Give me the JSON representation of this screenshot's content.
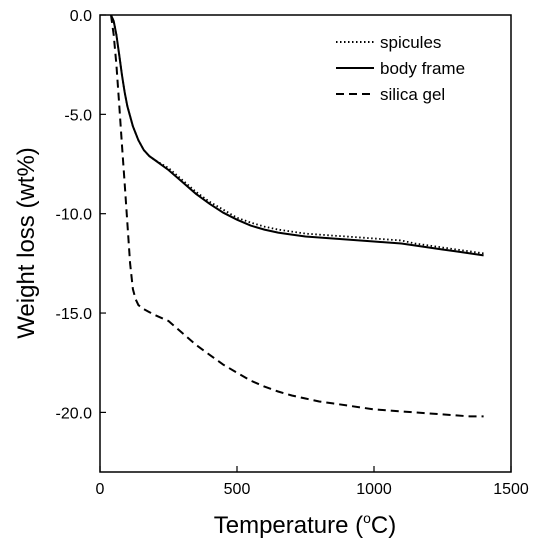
{
  "chart_data": {
    "type": "line",
    "xlabel": "Temperature (",
    "xlabel_unit_sup": "o",
    "xlabel_unit": "C)",
    "ylabel": "Weight loss (wt%)",
    "xlim": [
      0,
      1500
    ],
    "ylim": [
      -23,
      0
    ],
    "x_ticks": [
      0,
      500,
      1000,
      1500
    ],
    "x_tick_labels": [
      "0",
      "500",
      "1000",
      "1500"
    ],
    "y_ticks": [
      0,
      -5,
      -10,
      -15,
      -20
    ],
    "y_tick_labels": [
      "0.0",
      "-5.0",
      "-10.0",
      "-15.0",
      "-20.0"
    ],
    "grid": false,
    "legend_position": "top-right",
    "series": [
      {
        "name": "spicules",
        "style": "dotted",
        "color": "#000000",
        "x": [
          40,
          50,
          60,
          70,
          80,
          90,
          100,
          120,
          140,
          160,
          180,
          200,
          250,
          300,
          350,
          400,
          450,
          500,
          550,
          600,
          650,
          700,
          750,
          800,
          850,
          900,
          950,
          1000,
          1050,
          1100,
          1150,
          1200,
          1250,
          1300,
          1350,
          1400
        ],
        "y": [
          0,
          -0.3,
          -1.0,
          -2.0,
          -3.0,
          -3.9,
          -4.6,
          -5.6,
          -6.3,
          -6.8,
          -7.1,
          -7.3,
          -7.7,
          -8.3,
          -8.9,
          -9.4,
          -9.8,
          -10.2,
          -10.45,
          -10.65,
          -10.8,
          -10.9,
          -11.0,
          -11.05,
          -11.1,
          -11.15,
          -11.2,
          -11.25,
          -11.3,
          -11.35,
          -11.5,
          -11.6,
          -11.7,
          -11.8,
          -11.9,
          -12.0
        ]
      },
      {
        "name": "body frame",
        "style": "solid",
        "color": "#000000",
        "x": [
          40,
          50,
          60,
          70,
          80,
          90,
          100,
          120,
          140,
          160,
          180,
          200,
          250,
          300,
          350,
          400,
          450,
          500,
          550,
          600,
          650,
          700,
          750,
          800,
          850,
          900,
          950,
          1000,
          1050,
          1100,
          1150,
          1200,
          1250,
          1300,
          1350,
          1400
        ],
        "y": [
          0,
          -0.3,
          -1.0,
          -2.0,
          -3.0,
          -3.9,
          -4.6,
          -5.6,
          -6.3,
          -6.8,
          -7.1,
          -7.3,
          -7.8,
          -8.4,
          -9.0,
          -9.5,
          -9.95,
          -10.3,
          -10.6,
          -10.8,
          -10.95,
          -11.05,
          -11.15,
          -11.2,
          -11.25,
          -11.3,
          -11.35,
          -11.4,
          -11.45,
          -11.5,
          -11.6,
          -11.7,
          -11.8,
          -11.9,
          -12.0,
          -12.1
        ]
      },
      {
        "name": "silica gel",
        "style": "dashed",
        "color": "#000000",
        "x": [
          40,
          50,
          60,
          70,
          80,
          90,
          100,
          110,
          120,
          130,
          140,
          160,
          180,
          200,
          250,
          300,
          350,
          400,
          450,
          500,
          550,
          600,
          650,
          700,
          750,
          800,
          850,
          900,
          950,
          1000,
          1050,
          1100,
          1150,
          1200,
          1250,
          1300,
          1350,
          1400
        ],
        "y": [
          0,
          -1.0,
          -2.5,
          -4.5,
          -6.5,
          -8.5,
          -10.5,
          -12.5,
          -13.8,
          -14.3,
          -14.6,
          -14.8,
          -14.95,
          -15.1,
          -15.4,
          -16.0,
          -16.6,
          -17.1,
          -17.6,
          -18.0,
          -18.4,
          -18.7,
          -18.95,
          -19.15,
          -19.3,
          -19.45,
          -19.55,
          -19.65,
          -19.75,
          -19.85,
          -19.9,
          -19.95,
          -20.0,
          -20.05,
          -20.1,
          -20.15,
          -20.2,
          -20.2
        ]
      }
    ]
  }
}
